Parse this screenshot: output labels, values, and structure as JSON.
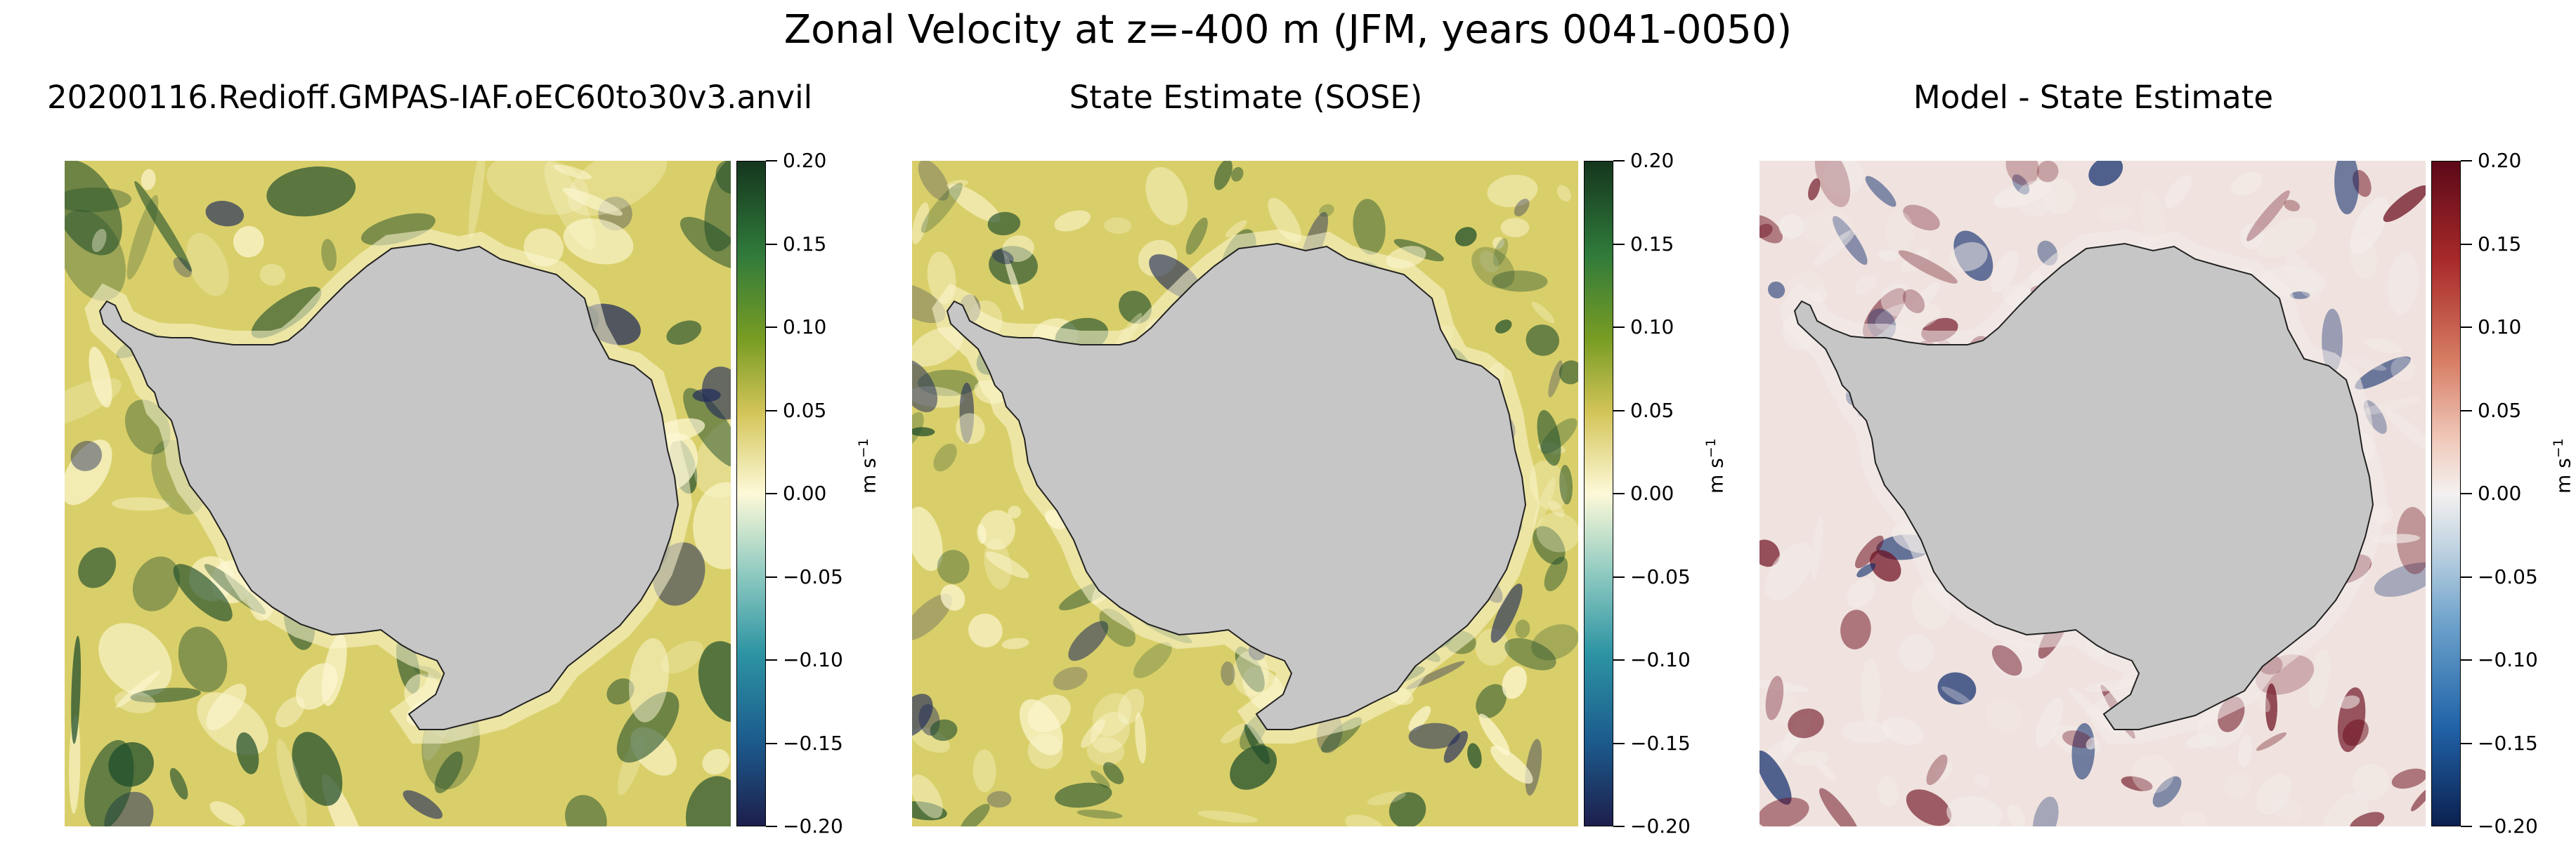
{
  "figure": {
    "title": "Zonal Velocity at z=-400 m (JFM, years 0041-0050)"
  },
  "panels": [
    {
      "title": "20200116.Redioff.GMPAS-IAF.oEC60to30v3.anvil",
      "colormap": "green-yellow-blue",
      "colors": {
        "pos": "#1c4b2a",
        "mid": "#fdf8d4",
        "neg": "#1f2a5c",
        "base": "#d9cf6a"
      }
    },
    {
      "title": "State Estimate (SOSE)",
      "colormap": "green-yellow-blue",
      "colors": {
        "pos": "#1c4b2a",
        "mid": "#fdf8d4",
        "neg": "#1f2a5c",
        "base": "#d9cf6a"
      }
    },
    {
      "title": "Model - State Estimate",
      "colormap": "red-white-blue",
      "colors": {
        "pos": "#6b0d1e",
        "mid": "#f2ece9",
        "neg": "#0d2a6b",
        "base": "#f0e3df"
      }
    }
  ],
  "land_color": "#c6c6c6",
  "colorbar": {
    "ticks": [
      "0.20",
      "0.15",
      "0.10",
      "0.05",
      "0.00",
      "−0.05",
      "−0.10",
      "−0.15",
      "−0.20"
    ],
    "label": "m s",
    "label_exponent": "−1"
  },
  "chart_data": [
    {
      "type": "heatmap",
      "title": "20200116.Redioff.GMPAS-IAF.oEC60to30v3.anvil",
      "projection": "south polar stereographic",
      "variable": "Zonal Velocity at z=-400 m",
      "units": "m s^-1",
      "vmin": -0.2,
      "vmax": 0.2,
      "colorbar_ticks": [
        0.2,
        0.15,
        0.1,
        0.05,
        0.0,
        -0.05,
        -0.1,
        -0.15,
        -0.2
      ]
    },
    {
      "type": "heatmap",
      "title": "State Estimate (SOSE)",
      "projection": "south polar stereographic",
      "variable": "Zonal Velocity at z=-400 m",
      "units": "m s^-1",
      "vmin": -0.2,
      "vmax": 0.2,
      "colorbar_ticks": [
        0.2,
        0.15,
        0.1,
        0.05,
        0.0,
        -0.05,
        -0.1,
        -0.15,
        -0.2
      ]
    },
    {
      "type": "heatmap",
      "title": "Model - State Estimate",
      "projection": "south polar stereographic",
      "variable": "Zonal Velocity difference at z=-400 m",
      "units": "m s^-1",
      "vmin": -0.2,
      "vmax": 0.2,
      "colorbar_ticks": [
        0.2,
        0.15,
        0.1,
        0.05,
        0.0,
        -0.05,
        -0.1,
        -0.15,
        -0.2
      ]
    }
  ]
}
